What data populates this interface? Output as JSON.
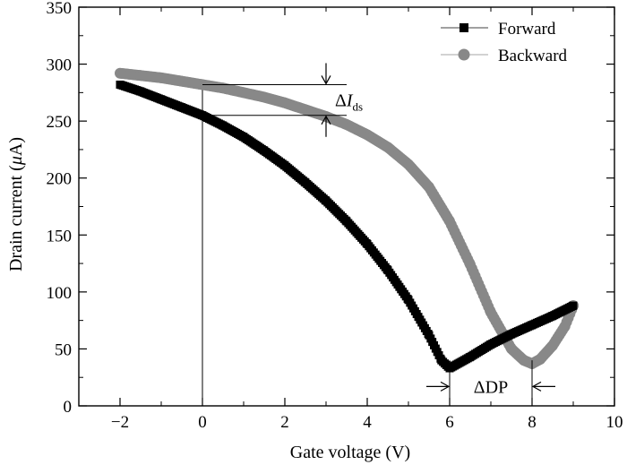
{
  "chart_data": {
    "type": "scatter",
    "xlabel": "Gate voltage (V)",
    "ylabel_main": "Drain current (",
    "ylabel_unit_symbol": "μ",
    "ylabel_unit_rest": "A)",
    "xlim": [
      -3,
      10
    ],
    "ylim": [
      0,
      350
    ],
    "xticks": [
      -2,
      0,
      2,
      4,
      6,
      8,
      10
    ],
    "xtick_labels": [
      "−2",
      "0",
      "2",
      "4",
      "6",
      "8",
      "10"
    ],
    "yticks": [
      0,
      50,
      100,
      150,
      200,
      250,
      300,
      350
    ],
    "ytick_labels": [
      "0",
      "50",
      "100",
      "150",
      "200",
      "250",
      "300",
      "350"
    ],
    "legend_position": "top-right",
    "series": [
      {
        "name": "Forward",
        "color": "#000000",
        "marker": "square",
        "x": [
          -2,
          -1.5,
          -1,
          -0.5,
          0,
          0.5,
          1,
          1.5,
          2,
          2.5,
          3,
          3.5,
          4,
          4.5,
          5,
          5.5,
          5.8,
          6,
          6.5,
          7,
          7.5,
          8,
          8.5,
          9
        ],
        "y": [
          282,
          276,
          269,
          262,
          255,
          246,
          236,
          224,
          211,
          196,
          180,
          162,
          142,
          119,
          93,
          62,
          40,
          33,
          43,
          54,
          63,
          71,
          79,
          88
        ]
      },
      {
        "name": "Backward",
        "color": "#888888",
        "marker": "circle",
        "x": [
          -2,
          -1.5,
          -1,
          -0.5,
          0,
          0.5,
          1,
          1.5,
          2,
          2.5,
          3,
          3.5,
          4,
          4.5,
          5,
          5.5,
          6,
          6.5,
          7,
          7.5,
          7.8,
          8,
          8.2,
          8.5,
          8.8,
          9
        ],
        "y": [
          292,
          290,
          288,
          285,
          282,
          279,
          275,
          271,
          266,
          260,
          254,
          247,
          238,
          227,
          212,
          192,
          162,
          124,
          82,
          50,
          40,
          37,
          41,
          53,
          70,
          88
        ]
      }
    ],
    "annotations": {
      "delta_ids_prefix": "Δ",
      "delta_ids_italic": "I",
      "delta_ids_sub": "ds",
      "delta_dp": "ΔDP",
      "ids_high": 282,
      "ids_low": 255,
      "ids_arrow_x": 3,
      "ids_line_x_end": 3.5,
      "dp_forward_x": 6,
      "dp_backward_x": 8,
      "dp_y": 17,
      "dp_line_y_top": 40,
      "vertical_ref_x": 0
    }
  }
}
